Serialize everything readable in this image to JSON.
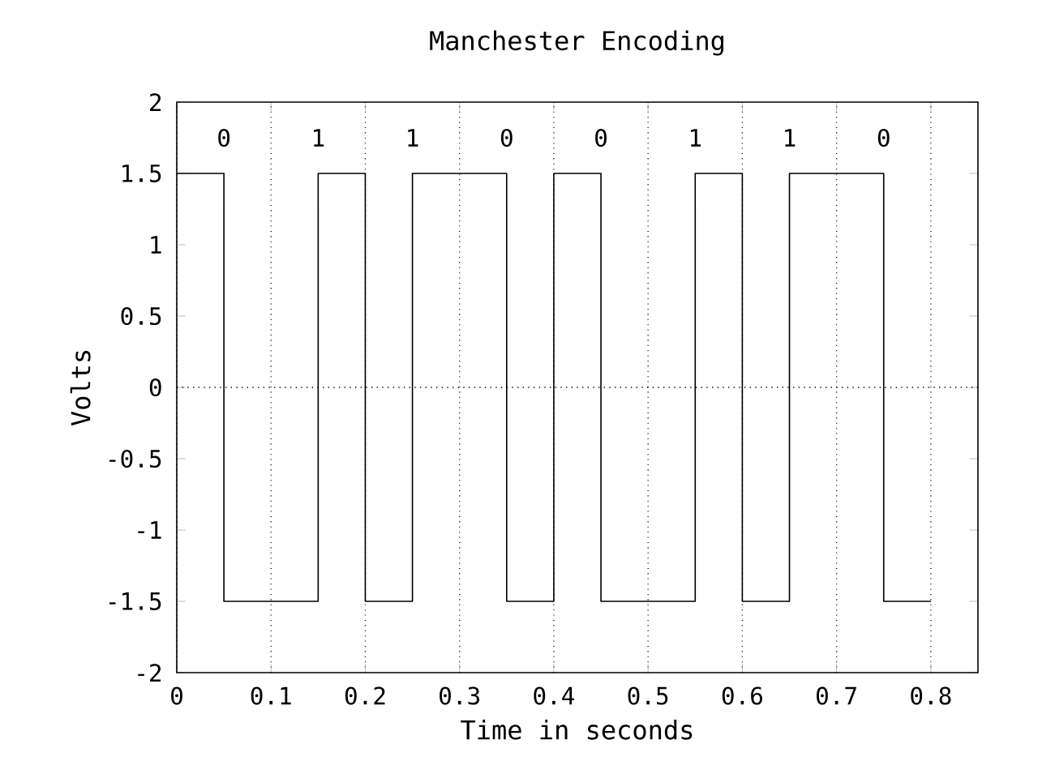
{
  "chart_data": {
    "type": "step",
    "title": "Manchester Encoding",
    "xlabel": "Time in seconds",
    "ylabel": "Volts",
    "x": [
      0,
      0.05,
      0.15,
      0.2,
      0.25,
      0.35,
      0.4,
      0.45,
      0.55,
      0.6,
      0.65,
      0.75,
      0.8
    ],
    "values": [
      1.5,
      -1.5,
      1.5,
      -1.5,
      1.5,
      -1.5,
      1.5,
      -1.5,
      1.5,
      -1.5,
      1.5,
      -1.5,
      -1.5
    ],
    "color": "#000000",
    "xlim": [
      0,
      0.85
    ],
    "ylim": [
      -2,
      2
    ],
    "xticks": [
      0,
      0.1,
      0.2,
      0.3,
      0.4,
      0.5,
      0.6,
      0.7,
      0.8
    ],
    "yticks": [
      -2,
      -1.5,
      -1,
      -0.5,
      0,
      0.5,
      1,
      1.5,
      2
    ],
    "grid": "x",
    "ref_lines": [
      {
        "axis": "y",
        "value": 0,
        "line_style": "dotted"
      }
    ],
    "annotations": [
      "0",
      "1",
      "1",
      "0",
      "0",
      "1",
      "1",
      "0"
    ]
  }
}
